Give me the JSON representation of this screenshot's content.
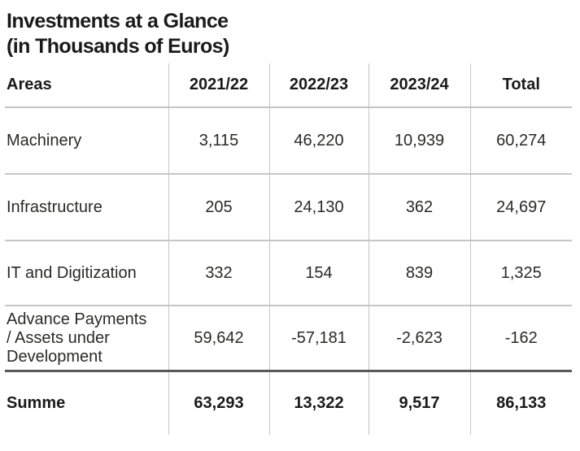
{
  "title": {
    "line1": "Investments at a Glance",
    "line2": "(in Thousands of Euros)"
  },
  "table": {
    "columns": [
      "Areas",
      "2021/22",
      "2022/23",
      "2023/24",
      "Total"
    ],
    "rows": [
      {
        "area": "Machinery",
        "values": [
          "3,115",
          "46,220",
          "10,939",
          "60,274"
        ]
      },
      {
        "area": "Infrastructure",
        "values": [
          "205",
          "24,130",
          "362",
          "24,697"
        ]
      },
      {
        "area": "IT and Digitization",
        "values": [
          "332",
          "154",
          "839",
          "1,325"
        ]
      },
      {
        "area": "Advance Payments\n/ Assets under\nDevelopment",
        "values": [
          "59,642",
          "-57,181",
          "-2,623",
          "-162"
        ]
      }
    ],
    "total_row": {
      "area": "Summe",
      "values": [
        "63,293",
        "13,322",
        "9,517",
        "86,133"
      ]
    }
  },
  "colors": {
    "text": "#1a1a1a",
    "grid_light": "#c6c6c6",
    "grid_heavy": "#58585a"
  },
  "chart_data": {
    "type": "table",
    "title": "Investments at a Glance (in Thousands of Euros)",
    "columns": [
      "Areas",
      "2021/22",
      "2022/23",
      "2023/24",
      "Total"
    ],
    "rows": [
      {
        "area": "Machinery",
        "values": [
          3115,
          46220,
          10939,
          60274
        ]
      },
      {
        "area": "Infrastructure",
        "values": [
          205,
          24130,
          362,
          24697
        ]
      },
      {
        "area": "IT and Digitization",
        "values": [
          332,
          154,
          839,
          1325
        ]
      },
      {
        "area": "Advance Payments / Assets under Development",
        "values": [
          59642,
          -57181,
          -2623,
          -162
        ]
      }
    ],
    "total": {
      "area": "Summe",
      "values": [
        63293,
        13322,
        9517,
        86133
      ]
    },
    "unit": "Thousands of Euros",
    "grid": "light vertical separators, light row rules, heavy rule above total, no outer border"
  }
}
